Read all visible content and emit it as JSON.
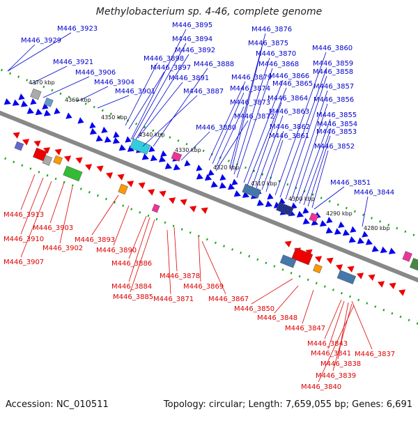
{
  "title": "Methylobacterium sp. 4-46, complete genome",
  "accession": "Accession: NC_010511",
  "topology": "Topology: circular; Length: 7,659,055 bp; Genes: 6,691",
  "colors": {
    "forward_label": "#0000cc",
    "reverse_label": "#dd0000",
    "forward_arrow": "#0000ee",
    "reverse_arrow": "#ee0000",
    "axis": "#888888",
    "tick": "#11aa11"
  },
  "ticks": [
    {
      "label": "4370 kbp"
    },
    {
      "label": "4360 kbp"
    },
    {
      "label": "4350 kbp"
    },
    {
      "label": "4340 kbp"
    },
    {
      "label": "4330 kbp"
    },
    {
      "label": "4320 kbp"
    },
    {
      "label": "4310 kbp"
    },
    {
      "label": "4300 kbp"
    },
    {
      "label": "4290 kbp"
    },
    {
      "label": "4280 kbp"
    }
  ],
  "forward_genes": [
    "M446_3923",
    "M446_3929",
    "M446_3921",
    "M446_3906",
    "M446_3904",
    "M446_3901",
    "M446_3895",
    "M446_3894",
    "M446_3892",
    "M446_3898",
    "M446_3897",
    "M446_3891",
    "M446_3888",
    "M446_3887",
    "M446_3880",
    "M446_3879",
    "M446_3874",
    "M446_3873",
    "M446_3872",
    "M446_3876",
    "M446_3875",
    "M446_3870",
    "M446_3868",
    "M446_3866",
    "M446_3865",
    "M446_3864",
    "M446_3863",
    "M446_3862",
    "M446_3861",
    "M446_3860",
    "M446_3859",
    "M446_3858",
    "M446_3857",
    "M446_3856",
    "M446_3855",
    "M446_3854",
    "M446_3853",
    "M446_3852",
    "M446_3851",
    "M446_3844"
  ],
  "reverse_genes": [
    "M446_3913",
    "M446_3910",
    "M446_3907",
    "M446_3903",
    "M446_3902",
    "M446_3893",
    "M446_3890",
    "M446_3886",
    "M446_3884",
    "M446_3885",
    "M446_3878",
    "M446_3871",
    "M446_3869",
    "M446_3867",
    "M446_3850",
    "M446_3848",
    "M446_3847",
    "M446_3843",
    "M446_3841",
    "M446_3838",
    "M446_3839",
    "M446_3840",
    "M446_3837"
  ]
}
